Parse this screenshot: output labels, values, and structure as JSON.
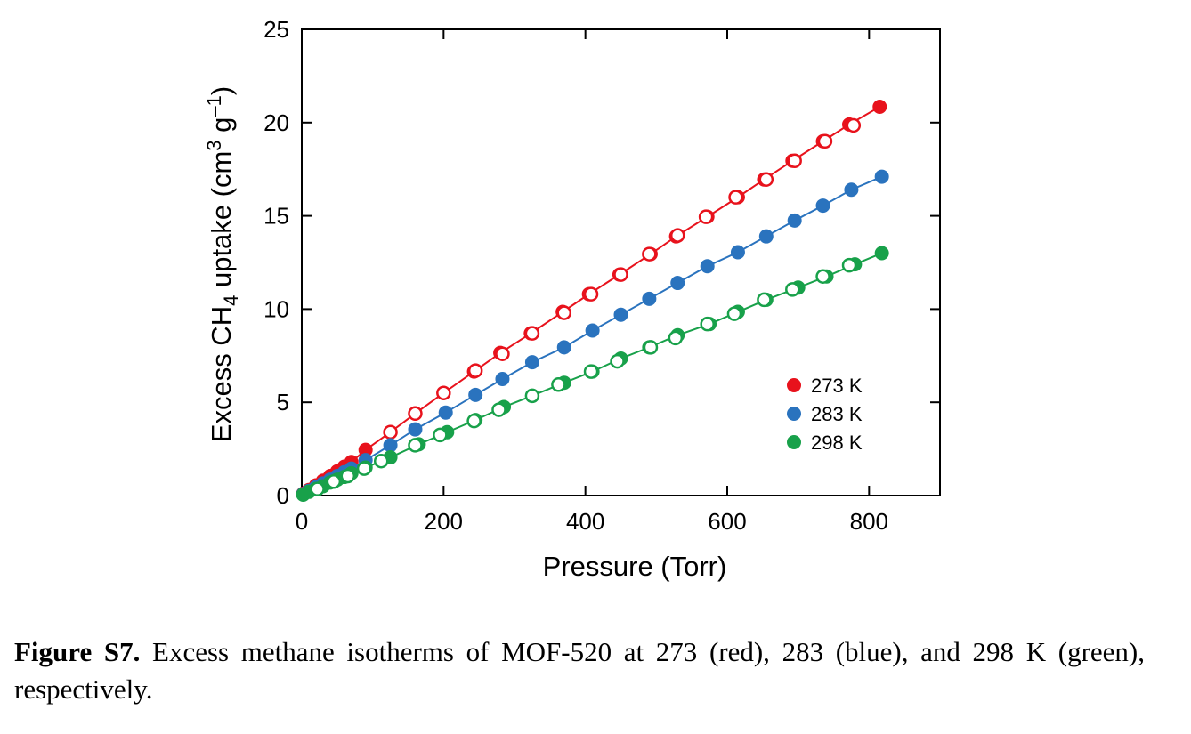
{
  "chart_data": {
    "type": "scatter",
    "xlabel": "Pressure (Torr)",
    "ylabel_parts": {
      "prefix": "Excess CH",
      "sub": "4",
      "middle": " uptake (cm",
      "sup1": "3",
      "g": " g",
      "sup2": "–1",
      "suffix": ")"
    },
    "xlim": [
      0,
      900
    ],
    "ylim": [
      0,
      25
    ],
    "x_ticks": [
      0,
      200,
      400,
      600,
      800
    ],
    "y_ticks": [
      0,
      5,
      10,
      15,
      20,
      25
    ],
    "grid": false,
    "legend_position": "lower-right",
    "series": [
      {
        "name": "273 K",
        "color": "#e8121c",
        "adsorption_x": [
          2,
          10,
          20,
          30,
          40,
          50,
          60,
          70,
          90,
          125,
          160,
          200,
          243,
          280,
          323,
          368,
          405,
          448,
          492,
          528,
          572,
          615,
          652,
          692,
          735,
          772,
          815
        ],
        "adsorption_y": [
          0.1,
          0.3,
          0.55,
          0.8,
          1.05,
          1.3,
          1.55,
          1.8,
          2.45,
          3.4,
          4.4,
          5.5,
          6.65,
          7.65,
          8.7,
          9.85,
          10.8,
          11.85,
          12.95,
          13.9,
          14.95,
          16.0,
          16.95,
          17.95,
          19.0,
          19.9,
          20.85
        ],
        "desorption_x": [
          125,
          160,
          200,
          245,
          283,
          325,
          370,
          408,
          450,
          490,
          530,
          570,
          612,
          655,
          695,
          738,
          778
        ],
        "desorption_y": [
          3.4,
          4.4,
          5.5,
          6.7,
          7.6,
          8.7,
          9.8,
          10.8,
          11.85,
          12.95,
          13.95,
          14.95,
          16.0,
          16.95,
          17.95,
          19.0,
          19.85
        ]
      },
      {
        "name": "283 K",
        "color": "#2a73be",
        "adsorption_x": [
          2,
          10,
          20,
          30,
          40,
          50,
          60,
          70,
          90,
          125,
          160,
          203,
          245,
          283,
          325,
          370,
          410,
          450,
          490,
          530,
          572,
          615,
          655,
          695,
          735,
          775,
          818
        ],
        "adsorption_y": [
          0.08,
          0.25,
          0.45,
          0.65,
          0.85,
          1.05,
          1.25,
          1.45,
          1.9,
          2.7,
          3.55,
          4.45,
          5.4,
          6.25,
          7.15,
          7.95,
          8.85,
          9.7,
          10.55,
          11.4,
          12.3,
          13.05,
          13.9,
          14.75,
          15.55,
          16.4,
          17.1
        ]
      },
      {
        "name": "298 K",
        "color": "#18a14a",
        "adsorption_x": [
          2,
          10,
          20,
          30,
          40,
          50,
          60,
          70,
          90,
          125,
          165,
          205,
          245,
          285,
          325,
          370,
          410,
          450,
          490,
          530,
          575,
          615,
          655,
          700,
          740,
          780,
          818
        ],
        "adsorption_y": [
          0.05,
          0.2,
          0.35,
          0.5,
          0.7,
          0.85,
          1.0,
          1.2,
          1.5,
          2.05,
          2.75,
          3.4,
          4.05,
          4.75,
          5.35,
          6.05,
          6.65,
          7.35,
          7.95,
          8.6,
          9.2,
          9.85,
          10.5,
          11.15,
          11.75,
          12.4,
          13.0
        ],
        "desorption_x": [
          22,
          45,
          65,
          88,
          112,
          160,
          195,
          243,
          278,
          325,
          362,
          408,
          445,
          492,
          527,
          572,
          610,
          652,
          692,
          735,
          772
        ],
        "desorption_y": [
          0.35,
          0.75,
          1.05,
          1.45,
          1.85,
          2.7,
          3.25,
          4.0,
          4.6,
          5.35,
          5.95,
          6.65,
          7.2,
          7.95,
          8.45,
          9.2,
          9.75,
          10.5,
          11.05,
          11.75,
          12.35
        ]
      }
    ]
  },
  "caption": {
    "label": "Figure S7.",
    "text": " Excess methane isotherms of MOF-520 at 273 (red), 283 (blue), and 298 K (green), respectively."
  }
}
